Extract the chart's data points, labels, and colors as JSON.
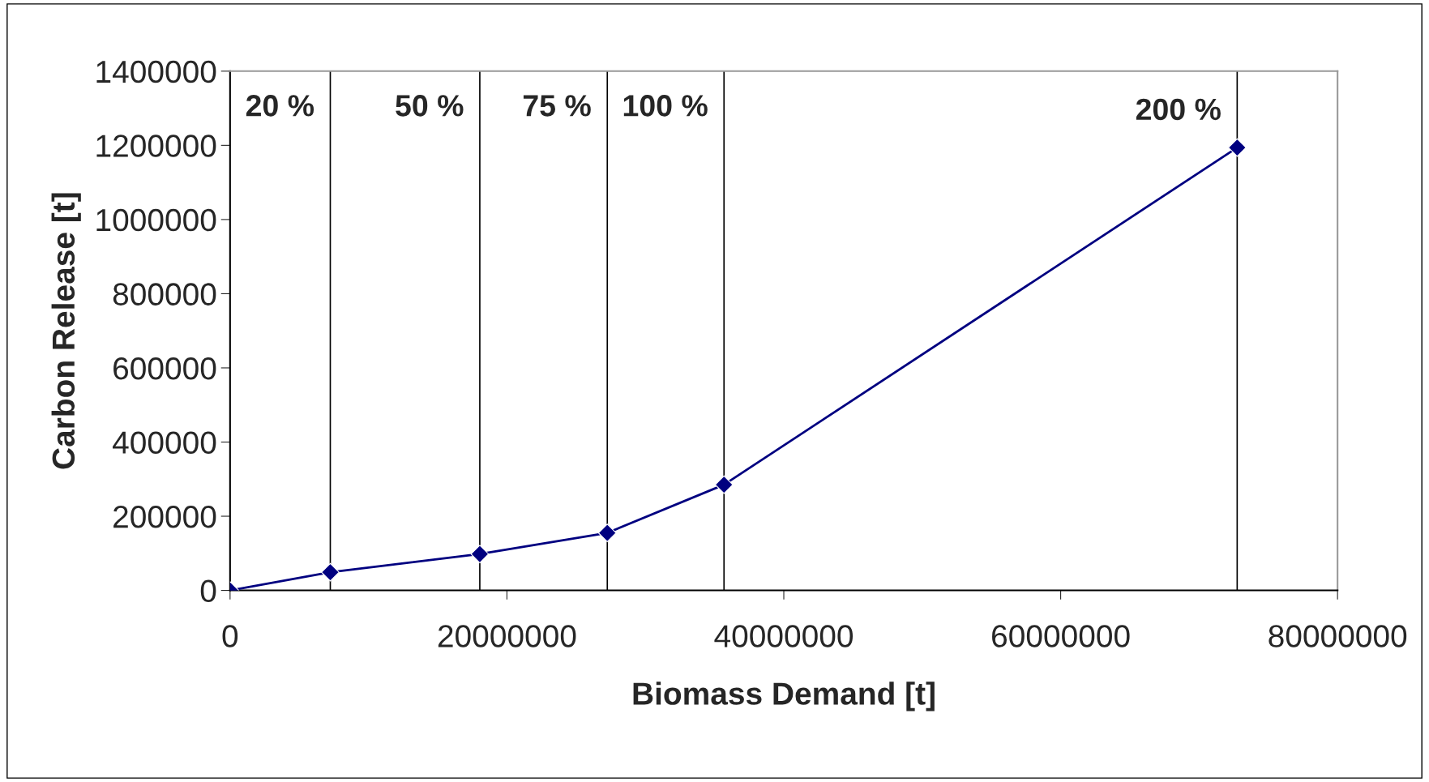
{
  "chart_data": {
    "type": "line",
    "xlabel": "Biomass Demand [t]",
    "ylabel": "Carbon Release [t]",
    "x": [
      0,
      7240000,
      18040000,
      27250000,
      35680000,
      72750000
    ],
    "series": [
      {
        "color": "#000080",
        "values": [
          0,
          49000,
          98000,
          155000,
          285000,
          1194000
        ]
      }
    ],
    "xlim": [
      0,
      80000000
    ],
    "xticks": [
      0,
      20000000,
      40000000,
      60000000,
      80000000
    ],
    "ylim": [
      0,
      1400000
    ],
    "yticks": [
      0,
      200000,
      400000,
      600000,
      800000,
      1000000,
      1200000,
      1400000
    ],
    "ref_lines": [
      {
        "axis": "x",
        "value": 7240000,
        "color": "#000000"
      },
      {
        "axis": "x",
        "value": 18040000,
        "color": "#000000"
      },
      {
        "axis": "x",
        "value": 27250000,
        "color": "#000000"
      },
      {
        "axis": "x",
        "value": 35680000,
        "color": "#000000"
      },
      {
        "axis": "x",
        "value": 72750000,
        "color": "#000000"
      }
    ],
    "annotations": [
      {
        "text": "20 %",
        "x": 7240000,
        "y": 1300000
      },
      {
        "text": "50 %",
        "x": 18040000,
        "y": 1300000
      },
      {
        "text": "75 %",
        "x": 27250000,
        "y": 1300000
      },
      {
        "text": "100 %",
        "x": 35680000,
        "y": 1300000
      },
      {
        "text": "200 %",
        "x": 72750000,
        "y": 1290000
      }
    ],
    "marker": "diamond",
    "line_style": "solid",
    "grid": false,
    "legend": false
  }
}
